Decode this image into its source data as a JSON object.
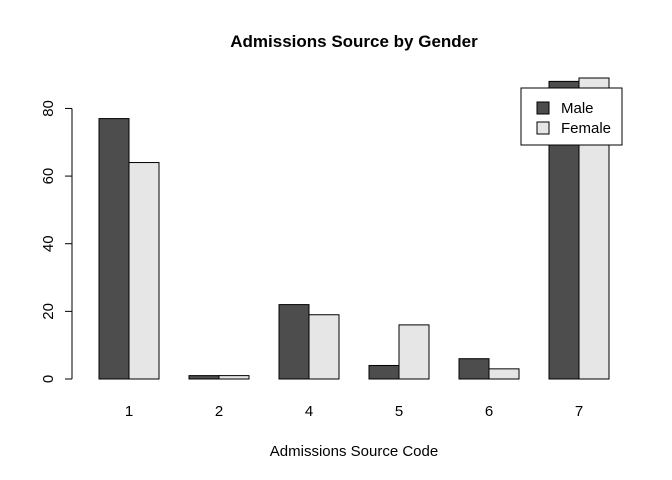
{
  "chart_data": {
    "type": "bar",
    "title": "Admissions Source by Gender",
    "xlabel": "Admissions Source Code",
    "ylabel": "",
    "categories": [
      "1",
      "2",
      "4",
      "5",
      "6",
      "7"
    ],
    "series": [
      {
        "name": "Male",
        "values": [
          77,
          1,
          22,
          4,
          6,
          88
        ],
        "color": "#4d4d4d"
      },
      {
        "name": "Female",
        "values": [
          64,
          1,
          19,
          16,
          3,
          89
        ],
        "color": "#e6e6e6"
      }
    ],
    "ylim": [
      0,
      89
    ],
    "yticks": [
      0,
      20,
      40,
      60,
      80
    ],
    "grid": false,
    "legend_position": "top-right",
    "bar_edge_color": "#000000"
  }
}
